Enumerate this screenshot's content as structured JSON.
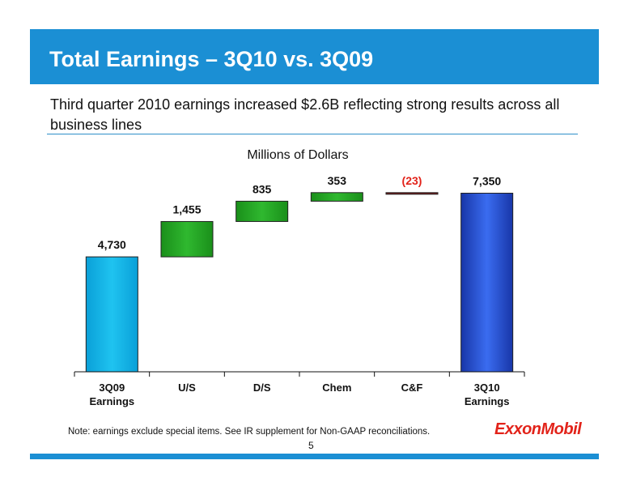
{
  "slide": {
    "title": "Total Earnings – 3Q10 vs. 3Q09",
    "subtitle": "Third quarter 2010 earnings increased $2.6B reflecting strong results across all business lines",
    "note": "Note: earnings exclude special items. See IR supplement for Non-GAAP reconciliations.",
    "page_number": "5",
    "logo_text": "ExxonMobil"
  },
  "colors": {
    "title_bar": "#1b8fd4",
    "start_bar": "#1fc3f0",
    "positive_bar": "#1a8f1a",
    "negative_bar": "#7a1a1a",
    "end_bar": "#1f4fd6",
    "negative_label": "#e2231a",
    "logo": "#e2231a"
  },
  "chart_data": {
    "type": "bar",
    "subtype": "waterfall",
    "title": "Millions of Dollars",
    "unit": "Millions of Dollars",
    "categories": [
      "3Q09 Earnings",
      "U/S",
      "D/S",
      "Chem",
      "C&F",
      "3Q10 Earnings"
    ],
    "category_lines": [
      [
        "3Q09",
        "Earnings"
      ],
      [
        "U/S"
      ],
      [
        "D/S"
      ],
      [
        "Chem"
      ],
      [
        "C&F"
      ],
      [
        "3Q10",
        "Earnings"
      ]
    ],
    "values": [
      4730,
      1455,
      835,
      353,
      -23,
      7350
    ],
    "labels": [
      "4,730",
      "1,455",
      "835",
      "353",
      "(23)",
      "7,350"
    ],
    "kinds": [
      "total",
      "delta",
      "delta",
      "delta",
      "delta",
      "total"
    ],
    "ylim": [
      0,
      8100
    ],
    "grid": false,
    "legend": "none"
  }
}
